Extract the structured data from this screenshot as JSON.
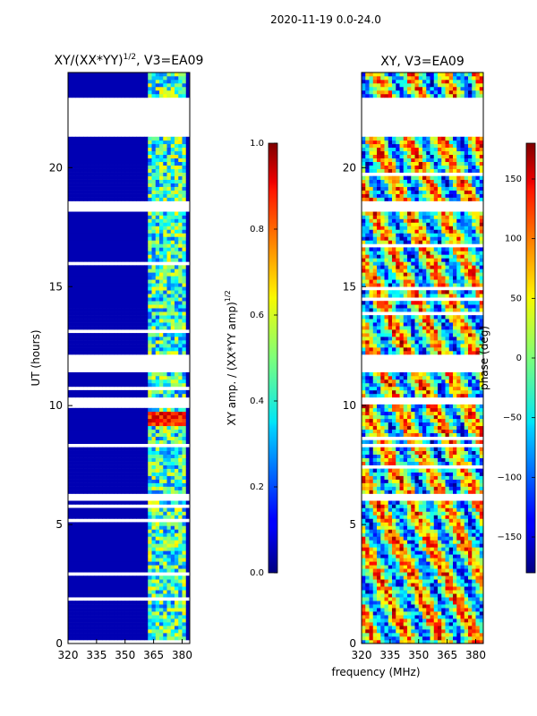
{
  "suptitle": "2020-11-19 0.0-24.0",
  "chart_data": [
    {
      "type": "heatmap",
      "title": "XY/(XX*YY)^{1/2}, V3=EA09",
      "title_main": "XY/(XX*YY)",
      "title_sup": "1/2",
      "title_tail": ", V3=EA09",
      "xlabel": "",
      "ylabel": "UT (hours)",
      "xlim": [
        320,
        384
      ],
      "ylim": [
        0,
        24
      ],
      "xticks": [
        320,
        335,
        350,
        365,
        380
      ],
      "yticks": [
        0,
        5,
        10,
        15,
        20
      ],
      "colormap": "jet",
      "colorbar": {
        "label_main": "XY amp. / (XX*YY amp)",
        "label_sup": "1/2",
        "range": [
          0.0,
          1.0
        ],
        "ticks": [
          0.0,
          0.2,
          0.4,
          0.6,
          0.8,
          1.0
        ],
        "tick_labels": [
          "0.0",
          "0.2",
          "0.4",
          "0.6",
          "0.8",
          "1.0"
        ]
      },
      "flagged_hours": [
        [
          21.3,
          22.95
        ],
        [
          18.2,
          18.6
        ],
        [
          11.35,
          12.1
        ],
        [
          10.1,
          10.35
        ],
        [
          8.2,
          8.45
        ],
        [
          6.0,
          6.25
        ]
      ],
      "active_band_mhz": [
        362,
        382
      ],
      "background_value": 0.05,
      "highlight_rows": [
        [
          9.1,
          9.7
        ]
      ]
    },
    {
      "type": "heatmap",
      "title": "XY, V3=EA09",
      "xlabel": "frequency (MHz)",
      "ylabel": "",
      "xlim": [
        320,
        384
      ],
      "ylim": [
        0,
        24
      ],
      "xticks": [
        320,
        335,
        350,
        365,
        380
      ],
      "yticks": [
        0,
        5,
        10,
        15,
        20
      ],
      "colormap": "jet",
      "colorbar": {
        "label": "phase (deg)",
        "range": [
          -180,
          180
        ],
        "ticks": [
          -150,
          -100,
          -50,
          0,
          50,
          100,
          150
        ],
        "tick_labels": [
          "−150",
          "−100",
          "−50",
          "0",
          "50",
          "100",
          "150"
        ]
      },
      "flagged_hours": [
        [
          21.3,
          22.95
        ],
        [
          18.2,
          18.6
        ],
        [
          11.35,
          12.1
        ],
        [
          10.1,
          10.35
        ],
        [
          8.2,
          8.45
        ],
        [
          6.0,
          6.25
        ]
      ]
    }
  ]
}
